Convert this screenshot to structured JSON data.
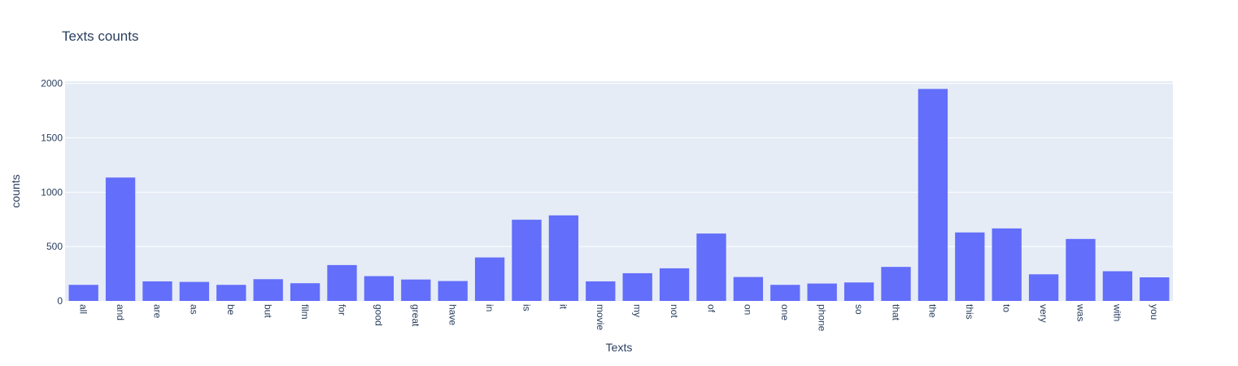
{
  "chart_data": {
    "type": "bar",
    "title": "Texts counts",
    "xlabel": "Texts",
    "ylabel": "counts",
    "ylim": [
      0,
      2000
    ],
    "yticks": [
      0,
      500,
      1000,
      1500,
      2000
    ],
    "grid": true,
    "categories": [
      "all",
      "and",
      "are",
      "as",
      "be",
      "but",
      "film",
      "for",
      "good",
      "great",
      "have",
      "in",
      "is",
      "it",
      "movie",
      "my",
      "not",
      "of",
      "on",
      "one",
      "phone",
      "so",
      "that",
      "the",
      "this",
      "to",
      "very",
      "was",
      "with",
      "you"
    ],
    "values": [
      148,
      1135,
      180,
      175,
      148,
      200,
      163,
      330,
      228,
      197,
      183,
      400,
      747,
      787,
      180,
      255,
      300,
      620,
      220,
      148,
      160,
      170,
      313,
      1950,
      630,
      667,
      245,
      570,
      273,
      217
    ],
    "colors": {
      "bar": "#636efa",
      "plot_bg": "#e5ecf6",
      "grid": "#ffffff",
      "text": "#2a3f5f"
    }
  }
}
